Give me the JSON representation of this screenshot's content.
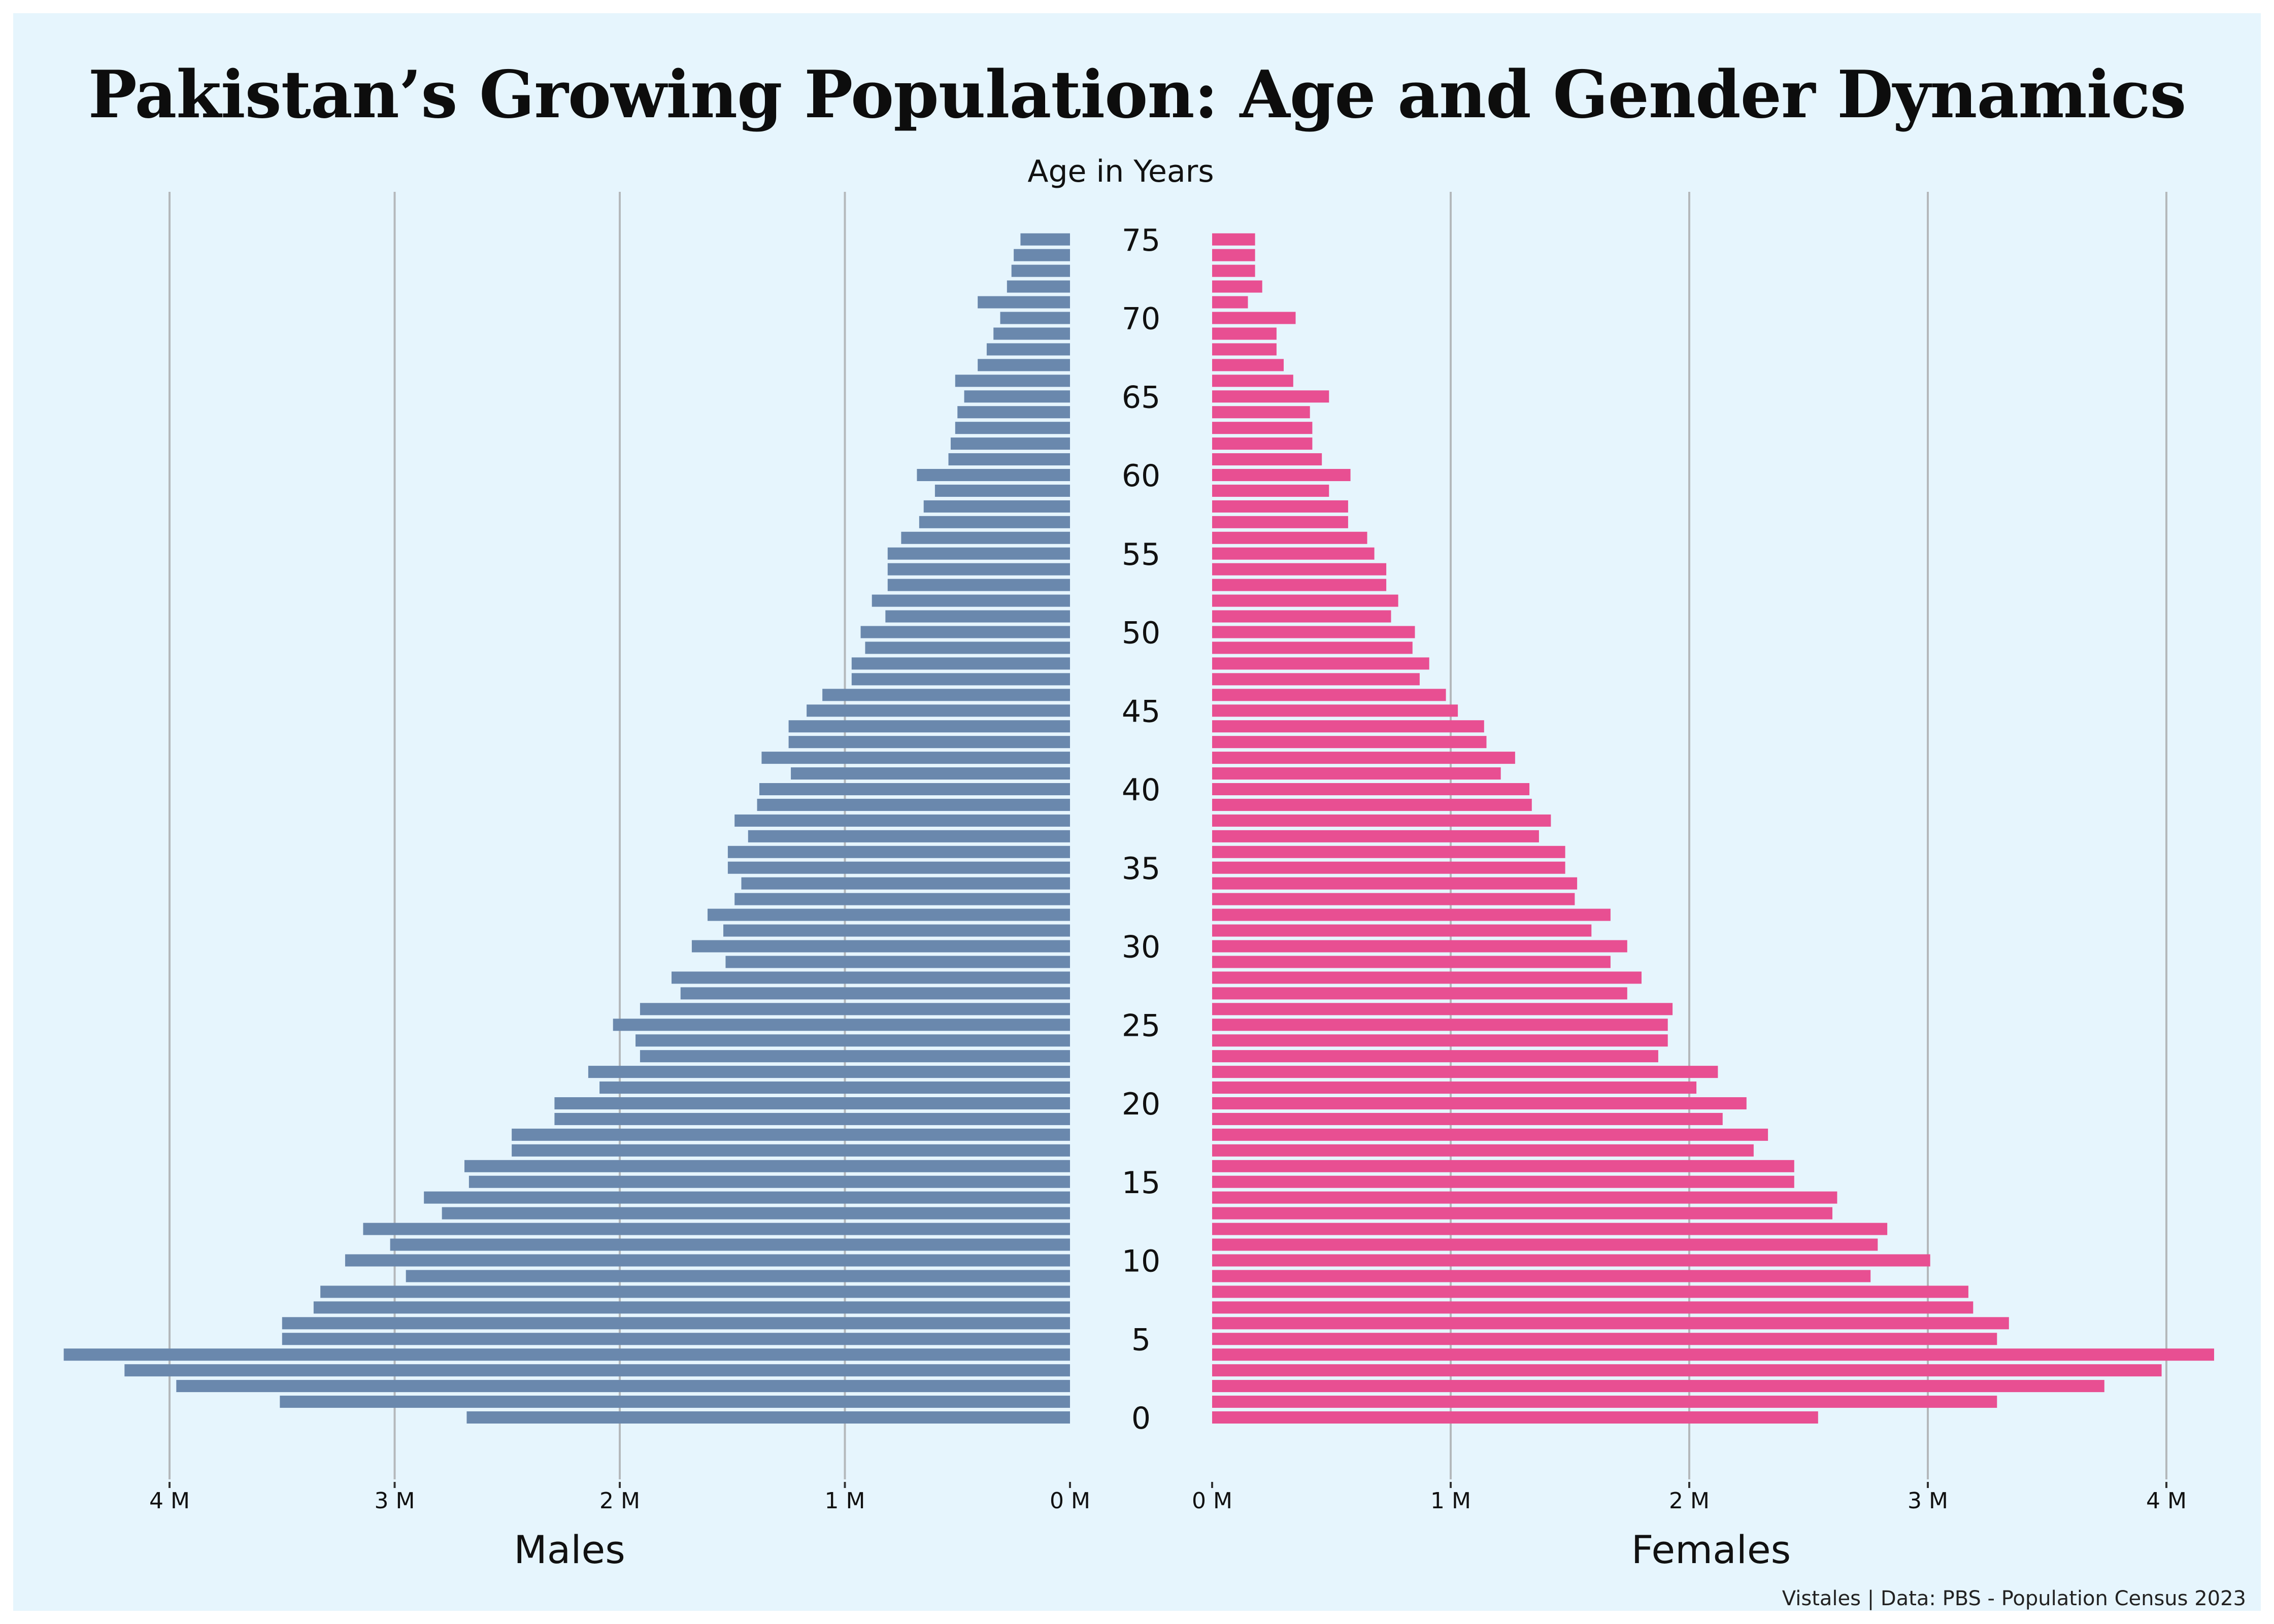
{
  "title": "Pakistan’s Growing Population: Age and Gender Dynamics",
  "source": "Vistales | Data: PBS - Population Census 2023",
  "colors": {
    "background": "#e6f5fd",
    "males": "#6a88ad",
    "females": "#e84f92",
    "grid": "#b4b8bb"
  },
  "chart_data": {
    "type": "bar",
    "orientation": "horizontal",
    "layout": "population-pyramid",
    "center_label": "Age in Years",
    "age_ticks": [
      "0",
      "5",
      "10",
      "15",
      "20",
      "25",
      "30",
      "35",
      "40",
      "45",
      "50",
      "55",
      "60",
      "65",
      "70",
      "75"
    ],
    "categories": [
      0,
      1,
      2,
      3,
      4,
      5,
      6,
      7,
      8,
      9,
      10,
      11,
      12,
      13,
      14,
      15,
      16,
      17,
      18,
      19,
      20,
      21,
      22,
      23,
      24,
      25,
      26,
      27,
      28,
      29,
      30,
      31,
      32,
      33,
      34,
      35,
      36,
      37,
      38,
      39,
      40,
      41,
      42,
      43,
      44,
      45,
      46,
      47,
      48,
      49,
      50,
      51,
      52,
      53,
      54,
      55,
      56,
      57,
      58,
      59,
      60,
      61,
      62,
      63,
      64,
      65,
      66,
      67,
      68,
      69,
      70,
      71,
      72,
      73,
      74,
      75
    ],
    "series": [
      {
        "name": "Males",
        "values": [
          2.68,
          3.51,
          3.97,
          4.2,
          4.47,
          3.5,
          3.5,
          3.36,
          3.33,
          2.95,
          3.22,
          3.02,
          3.14,
          2.79,
          2.87,
          2.67,
          2.69,
          2.48,
          2.48,
          2.29,
          2.29,
          2.09,
          2.14,
          1.91,
          1.93,
          2.03,
          1.91,
          1.73,
          1.77,
          1.53,
          1.68,
          1.54,
          1.61,
          1.49,
          1.46,
          1.52,
          1.52,
          1.43,
          1.49,
          1.39,
          1.38,
          1.24,
          1.37,
          1.25,
          1.25,
          1.17,
          1.1,
          0.97,
          0.97,
          0.91,
          0.93,
          0.82,
          0.88,
          0.81,
          0.81,
          0.81,
          0.75,
          0.67,
          0.65,
          0.6,
          0.68,
          0.54,
          0.53,
          0.51,
          0.5,
          0.47,
          0.51,
          0.41,
          0.37,
          0.34,
          0.31,
          0.41,
          0.28,
          0.26,
          0.25,
          0.22
        ],
        "x_ticks": [
          "0 M",
          "1 M",
          "2 M",
          "3 M",
          "4 M"
        ],
        "xlim": [
          0,
          4.5
        ],
        "axis_label": "Males"
      },
      {
        "name": "Females",
        "values": [
          2.54,
          3.29,
          3.74,
          3.98,
          4.2,
          3.29,
          3.34,
          3.19,
          3.17,
          2.76,
          3.01,
          2.79,
          2.83,
          2.6,
          2.62,
          2.44,
          2.44,
          2.27,
          2.33,
          2.14,
          2.24,
          2.03,
          2.12,
          1.87,
          1.91,
          1.91,
          1.93,
          1.74,
          1.8,
          1.67,
          1.74,
          1.59,
          1.67,
          1.52,
          1.53,
          1.48,
          1.48,
          1.37,
          1.42,
          1.34,
          1.33,
          1.21,
          1.27,
          1.15,
          1.14,
          1.03,
          0.98,
          0.87,
          0.91,
          0.84,
          0.85,
          0.75,
          0.78,
          0.73,
          0.73,
          0.68,
          0.65,
          0.57,
          0.57,
          0.49,
          0.58,
          0.46,
          0.42,
          0.42,
          0.41,
          0.49,
          0.34,
          0.3,
          0.27,
          0.27,
          0.35,
          0.15,
          0.21,
          0.18,
          0.18,
          0.18
        ],
        "x_ticks": [
          "0 M",
          "1 M",
          "2 M",
          "3 M",
          "4 M"
        ],
        "xlim": [
          0,
          4.2
        ],
        "axis_label": "Females"
      }
    ],
    "units": "millions",
    "grid": "vertical"
  }
}
